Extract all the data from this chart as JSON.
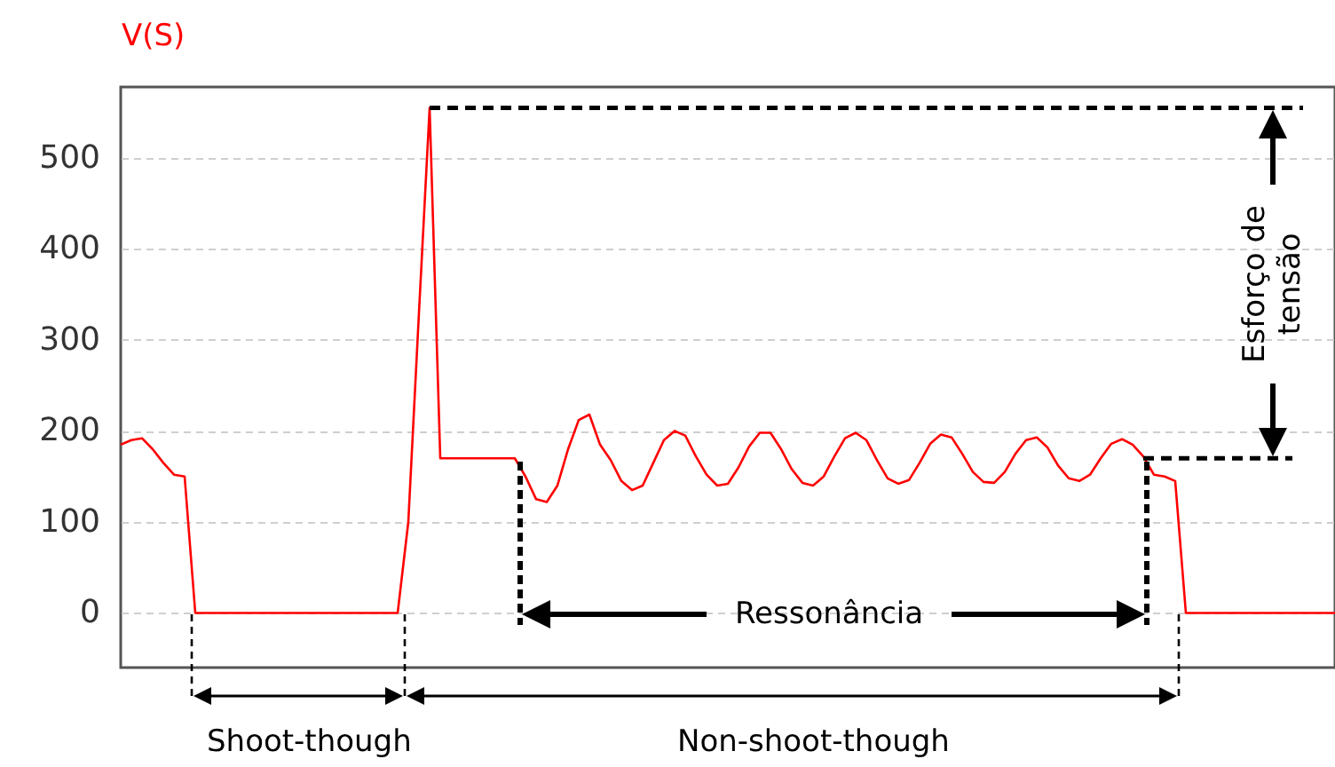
{
  "chart_data": {
    "type": "line",
    "ylabel": "V(S)",
    "categories": [
      null,
      null,
      null,
      null,
      null,
      null,
      null,
      null,
      null,
      null,
      null,
      null,
      null,
      null,
      null,
      null,
      null,
      null,
      null,
      null,
      null,
      null,
      null,
      null,
      null,
      null,
      null,
      null,
      null,
      null,
      null,
      null,
      null,
      null,
      null,
      null,
      null,
      null,
      null,
      null,
      null,
      null,
      null,
      null,
      null,
      null,
      null,
      null,
      null,
      null,
      null,
      null,
      null,
      null,
      null,
      null,
      null,
      null,
      null,
      null,
      null,
      null,
      null,
      null,
      null,
      null,
      null,
      null,
      null,
      null,
      null,
      null,
      null,
      null,
      null,
      null,
      null,
      null,
      null,
      null,
      null,
      null,
      null,
      null,
      null,
      null,
      null,
      null,
      null,
      null,
      null,
      null,
      null,
      null,
      null,
      null,
      null,
      null,
      null,
      null,
      null,
      null,
      null,
      null,
      null,
      null,
      null,
      null,
      null,
      null,
      null,
      null,
      null,
      null,
      null
    ],
    "series": [
      {
        "color": "#ff0000",
        "values": [
          185,
          190,
          192,
          180,
          165,
          152,
          150,
          0,
          0,
          0,
          0,
          0,
          0,
          0,
          0,
          0,
          0,
          0,
          0,
          0,
          0,
          0,
          0,
          0,
          0,
          0,
          0,
          100,
          330,
          555,
          170,
          170,
          170,
          170,
          170,
          170,
          170,
          170,
          150,
          125,
          122,
          140,
          180,
          212,
          218,
          185,
          168,
          145,
          135,
          140,
          165,
          190,
          200,
          195,
          172,
          152,
          140,
          142,
          160,
          183,
          198,
          198,
          180,
          158,
          143,
          140,
          150,
          172,
          192,
          198,
          190,
          168,
          148,
          142,
          146,
          165,
          186,
          196,
          193,
          175,
          155,
          144,
          143,
          155,
          175,
          190,
          193,
          182,
          162,
          148,
          145,
          152,
          170,
          186,
          191,
          185,
          172,
          152,
          150,
          145,
          0,
          0,
          0,
          0,
          0,
          0,
          0,
          0,
          0,
          0,
          0,
          0,
          0,
          0,
          0
        ]
      },
      {
        "color": "#000000",
        "line_style": "dashed",
        "values": [
          null,
          null,
          null,
          null,
          null,
          null,
          null,
          null,
          null,
          null,
          null,
          null,
          null,
          null,
          null,
          null,
          null,
          null,
          null,
          null,
          null,
          null,
          null,
          null,
          null,
          null,
          null,
          null,
          null,
          555,
          555,
          555,
          555,
          555,
          555,
          555,
          555,
          555,
          555,
          555,
          555,
          555,
          555,
          555,
          555,
          555,
          555,
          555,
          555,
          555,
          555,
          555,
          555,
          555,
          555,
          555,
          555,
          555,
          555,
          555,
          555,
          555,
          555,
          555,
          555,
          555,
          555,
          555,
          555,
          555,
          555,
          555,
          555,
          555,
          555,
          555,
          555,
          555,
          555,
          555,
          555,
          555,
          555,
          555,
          555,
          555,
          555,
          555,
          555,
          555,
          555,
          555,
          555,
          555,
          555,
          555,
          555,
          555,
          555,
          555,
          555,
          555,
          555,
          555,
          555,
          555,
          555,
          555,
          555,
          555,
          555,
          555,
          null,
          null,
          null
        ]
      },
      {
        "color": "#000000",
        "line_style": "dashed",
        "values": [
          null,
          null,
          null,
          null,
          null,
          null,
          null,
          null,
          null,
          null,
          null,
          null,
          null,
          null,
          null,
          null,
          null,
          null,
          null,
          null,
          null,
          null,
          null,
          null,
          null,
          null,
          null,
          null,
          null,
          null,
          null,
          null,
          null,
          null,
          null,
          null,
          null,
          null,
          null,
          null,
          null,
          null,
          null,
          null,
          null,
          null,
          null,
          null,
          null,
          null,
          null,
          null,
          null,
          null,
          null,
          null,
          null,
          null,
          null,
          null,
          null,
          null,
          null,
          null,
          null,
          null,
          null,
          null,
          null,
          null,
          null,
          null,
          null,
          null,
          null,
          null,
          null,
          null,
          null,
          null,
          null,
          null,
          null,
          null,
          null,
          null,
          null,
          null,
          null,
          null,
          null,
          null,
          null,
          null,
          null,
          null,
          170,
          170,
          170,
          170,
          170,
          170,
          170,
          170,
          170,
          170,
          170,
          170,
          170,
          170,
          170,
          null,
          null,
          null,
          null
        ]
      }
    ],
    "ylim": [
      -60,
      578
    ],
    "yticks": [
      0,
      100,
      200,
      300,
      400,
      500
    ],
    "grid": "y",
    "tick_labels": "y",
    "marker": "none",
    "line_style": "solid",
    "annotations": [
      "Esforço de tensão",
      "Ressonância",
      "Shoot-though",
      "Non-shoot-though"
    ]
  }
}
